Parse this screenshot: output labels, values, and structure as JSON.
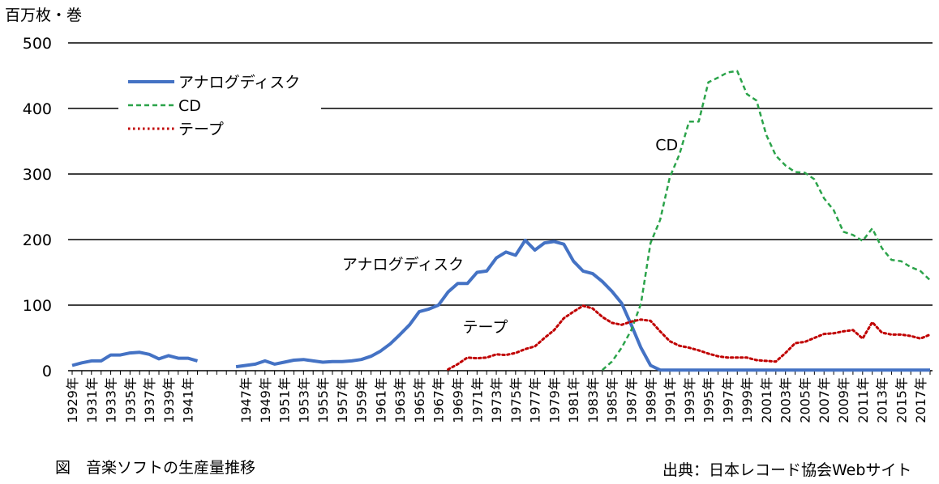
{
  "chart_data": {
    "type": "line",
    "ylabel": "百万枚・巻",
    "ylim": [
      0,
      500
    ],
    "yticks": [
      0,
      100,
      200,
      300,
      400,
      500
    ],
    "grid": true,
    "legend_position": "top-left",
    "x_tick_labels": [
      "1929年",
      "1931年",
      "1933年",
      "1935年",
      "1937年",
      "1939年",
      "1941年",
      "1947年",
      "1949年",
      "1951年",
      "1953年",
      "1955年",
      "1957年",
      "1959年",
      "1961年",
      "1963年",
      "1965年",
      "1967年",
      "1969年",
      "1971年",
      "1973年",
      "1975年",
      "1977年",
      "1979年",
      "1981年",
      "1983年",
      "1985年",
      "1987年",
      "1989年",
      "1991年",
      "1993年",
      "1995年",
      "1997年",
      "1999年",
      "2001年",
      "2003年",
      "2005年",
      "2007年",
      "2009年",
      "2011年",
      "2013年",
      "2015年",
      "2017年"
    ],
    "series": [
      {
        "name": "アナログディスク",
        "color": "#4472c4",
        "style": "solid",
        "x": [
          1929,
          1930,
          1931,
          1932,
          1933,
          1934,
          1935,
          1936,
          1937,
          1938,
          1939,
          1940,
          1941,
          1942,
          1946,
          1947,
          1948,
          1949,
          1950,
          1951,
          1952,
          1953,
          1954,
          1955,
          1956,
          1957,
          1958,
          1959,
          1960,
          1961,
          1962,
          1963,
          1964,
          1965,
          1966,
          1967,
          1968,
          1969,
          1970,
          1971,
          1972,
          1973,
          1974,
          1975,
          1976,
          1977,
          1978,
          1979,
          1980,
          1981,
          1982,
          1983,
          1984,
          1985,
          1986,
          1987,
          1988,
          1989,
          1990,
          1991,
          1992,
          1993,
          1994,
          1995,
          1996,
          1997,
          1998,
          1999,
          2000,
          2001,
          2002,
          2003,
          2004,
          2005,
          2006,
          2007,
          2008,
          2009,
          2010,
          2011,
          2012,
          2013,
          2014,
          2015,
          2016,
          2017,
          2018
        ],
        "values": [
          8,
          12,
          15,
          15,
          24,
          24,
          27,
          28,
          25,
          18,
          23,
          19,
          19,
          15,
          6,
          8,
          10,
          15,
          10,
          13,
          16,
          17,
          15,
          13,
          14,
          14,
          15,
          17,
          22,
          30,
          41,
          55,
          70,
          90,
          94,
          100,
          120,
          133,
          133,
          150,
          152,
          172,
          181,
          176,
          199,
          184,
          195,
          197,
          193,
          167,
          152,
          148,
          136,
          121,
          103,
          70,
          35,
          8,
          1,
          1,
          1,
          1,
          1,
          1,
          1,
          1,
          1,
          1,
          1,
          1,
          1,
          1,
          1,
          1,
          1,
          1,
          1,
          1,
          1,
          1,
          1,
          1,
          1,
          1,
          1,
          1,
          1
        ]
      },
      {
        "name": "CD",
        "color": "#2ba34a",
        "style": "dashed",
        "x": [
          1984,
          1985,
          1986,
          1987,
          1988,
          1989,
          1990,
          1991,
          1992,
          1993,
          1994,
          1995,
          1996,
          1997,
          1998,
          1999,
          2000,
          2001,
          2002,
          2003,
          2004,
          2005,
          2006,
          2007,
          2008,
          2009,
          2010,
          2011,
          2012,
          2013,
          2014,
          2015,
          2016,
          2017,
          2018
        ],
        "values": [
          1,
          14,
          35,
          62,
          102,
          195,
          230,
          295,
          330,
          380,
          380,
          440,
          447,
          455,
          457,
          422,
          412,
          360,
          328,
          313,
          303,
          302,
          292,
          263,
          245,
          212,
          207,
          198,
          217,
          187,
          169,
          167,
          158,
          152,
          138
        ]
      },
      {
        "name": "テープ",
        "color": "#c00000",
        "style": "dotted",
        "x": [
          1968,
          1969,
          1970,
          1971,
          1972,
          1973,
          1974,
          1975,
          1976,
          1977,
          1978,
          1979,
          1980,
          1981,
          1982,
          1983,
          1984,
          1985,
          1986,
          1987,
          1988,
          1989,
          1990,
          1991,
          1992,
          1993,
          1994,
          1995,
          1996,
          1997,
          1998,
          1999,
          2000,
          2001,
          2002,
          2003,
          2004,
          2005,
          2006,
          2007,
          2008,
          2009,
          2010,
          2011,
          2012,
          2013,
          2014,
          2015,
          2016,
          2017,
          2018
        ],
        "values": [
          2,
          10,
          20,
          19,
          20,
          25,
          24,
          27,
          33,
          37,
          50,
          62,
          80,
          90,
          99,
          95,
          82,
          73,
          70,
          75,
          78,
          76,
          60,
          45,
          38,
          35,
          31,
          26,
          22,
          20,
          20,
          20,
          16,
          15,
          14,
          27,
          42,
          44,
          50,
          56,
          57,
          60,
          62,
          49,
          74,
          58,
          55,
          55,
          53,
          49,
          55
        ]
      }
    ],
    "annotations": [
      {
        "text": "CD",
        "x": 1989.5,
        "y": 345
      },
      {
        "text": "アナログディスク",
        "x": 1957,
        "y": 163
      },
      {
        "text": "テープ",
        "x": 1969.5,
        "y": 67
      }
    ]
  },
  "texts": {
    "ylabel_unit": "百万枚・巻",
    "caption": "図　音楽ソフトの生産量推移",
    "source": "出典：日本レコード協会Webサイト"
  }
}
